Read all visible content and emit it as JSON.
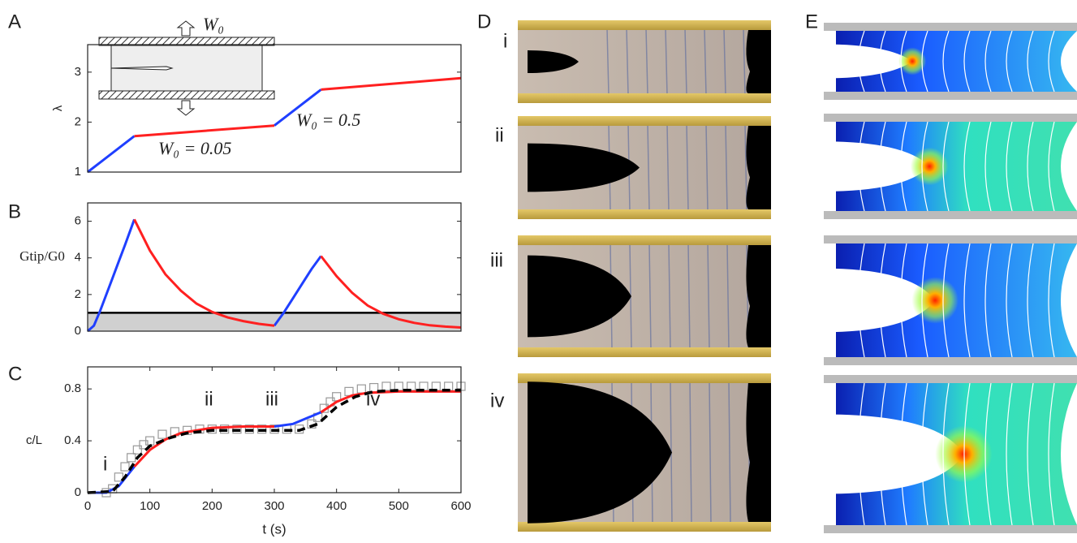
{
  "panel_labels": [
    "A",
    "B",
    "C",
    "D",
    "E"
  ],
  "photo_labels": [
    "i",
    "ii",
    "iii",
    "iv"
  ],
  "chart_data": [
    {
      "type": "line",
      "y_label": "λ",
      "xlim": [
        0,
        600
      ],
      "ylim": [
        1,
        3.55
      ],
      "yticks": [
        1,
        2,
        3
      ],
      "annotations": [
        "W₀",
        "W₀ = 0.05",
        "W₀ = 0.5"
      ],
      "series": [
        {
          "color": "#1f3fff",
          "x": [
            0,
            75,
            null,
            300,
            375
          ],
          "values": [
            1,
            1.72,
            null,
            1.93,
            2.65
          ]
        },
        {
          "color": "#ff2020",
          "x": [
            75,
            300,
            null,
            375,
            600
          ],
          "values": [
            1.72,
            1.93,
            null,
            2.65,
            2.88
          ]
        }
      ]
    },
    {
      "type": "line",
      "y_label": "Gtip/G0",
      "xlim": [
        0,
        600
      ],
      "ylim": [
        0,
        7
      ],
      "yticks": [
        0,
        2,
        4,
        6
      ],
      "threshold": 1,
      "series": [
        {
          "color": "#1f3fff",
          "x": [
            0,
            10,
            20,
            30,
            40,
            50,
            60,
            75,
            null,
            300,
            315,
            330,
            345,
            360,
            375
          ],
          "values": [
            0,
            0.3,
            1.1,
            2,
            2.9,
            3.8,
            4.7,
            6.1,
            null,
            0.3,
            1,
            1.8,
            2.6,
            3.4,
            4.1
          ]
        },
        {
          "color": "#ff2020",
          "x": [
            75,
            100,
            125,
            150,
            175,
            200,
            225,
            250,
            275,
            300,
            null,
            375,
            400,
            425,
            450,
            475,
            500,
            525,
            550,
            575,
            600
          ],
          "values": [
            6.1,
            4.4,
            3.1,
            2.2,
            1.5,
            1.05,
            0.75,
            0.55,
            0.4,
            0.3,
            null,
            4.1,
            3,
            2.1,
            1.4,
            0.95,
            0.65,
            0.45,
            0.32,
            0.25,
            0.2
          ]
        }
      ]
    },
    {
      "type": "line",
      "x_label": "t (s)",
      "y_label": "c/L",
      "xlim": [
        0,
        600
      ],
      "ylim": [
        0,
        0.97
      ],
      "xticks": [
        0,
        100,
        200,
        300,
        400,
        500,
        600
      ],
      "yticks": [
        0,
        0.4,
        0.8
      ],
      "annotations": [
        "i",
        "ii",
        "iii",
        "iv"
      ],
      "series": [
        {
          "style": "markers",
          "color": "#999999",
          "x": [
            30,
            40,
            50,
            60,
            70,
            80,
            90,
            100,
            120,
            140,
            160,
            180,
            200,
            220,
            240,
            260,
            280,
            300,
            320,
            340,
            360,
            370,
            380,
            390,
            400,
            420,
            440,
            460,
            480,
            500,
            520,
            540,
            560,
            580,
            600
          ],
          "values": [
            0,
            0.03,
            0.12,
            0.2,
            0.27,
            0.33,
            0.37,
            0.4,
            0.45,
            0.47,
            0.48,
            0.49,
            0.49,
            0.49,
            0.49,
            0.49,
            0.49,
            0.49,
            0.49,
            0.49,
            0.53,
            0.58,
            0.65,
            0.7,
            0.74,
            0.78,
            0.8,
            0.81,
            0.82,
            0.82,
            0.82,
            0.82,
            0.82,
            0.82,
            0.82
          ]
        },
        {
          "color": "#1f3fff",
          "x": [
            0,
            30,
            50,
            75,
            null,
            300,
            330,
            350,
            375
          ],
          "values": [
            0,
            0,
            0.05,
            0.2,
            null,
            0.51,
            0.53,
            0.57,
            0.62
          ]
        },
        {
          "color": "#ff2020",
          "x": [
            75,
            100,
            125,
            150,
            200,
            250,
            300,
            null,
            375,
            400,
            425,
            450,
            500,
            600
          ],
          "values": [
            0.2,
            0.33,
            0.41,
            0.46,
            0.5,
            0.51,
            0.51,
            null,
            0.62,
            0.7,
            0.75,
            0.77,
            0.78,
            0.78
          ]
        },
        {
          "style": "dashed",
          "color": "#000000",
          "x": [
            0,
            40,
            60,
            80,
            100,
            130,
            160,
            200,
            250,
            300,
            340,
            370,
            400,
            430,
            460,
            500,
            600
          ],
          "values": [
            0,
            0.01,
            0.12,
            0.27,
            0.36,
            0.42,
            0.46,
            0.48,
            0.48,
            0.48,
            0.48,
            0.53,
            0.66,
            0.74,
            0.78,
            0.79,
            0.79
          ]
        }
      ]
    }
  ]
}
